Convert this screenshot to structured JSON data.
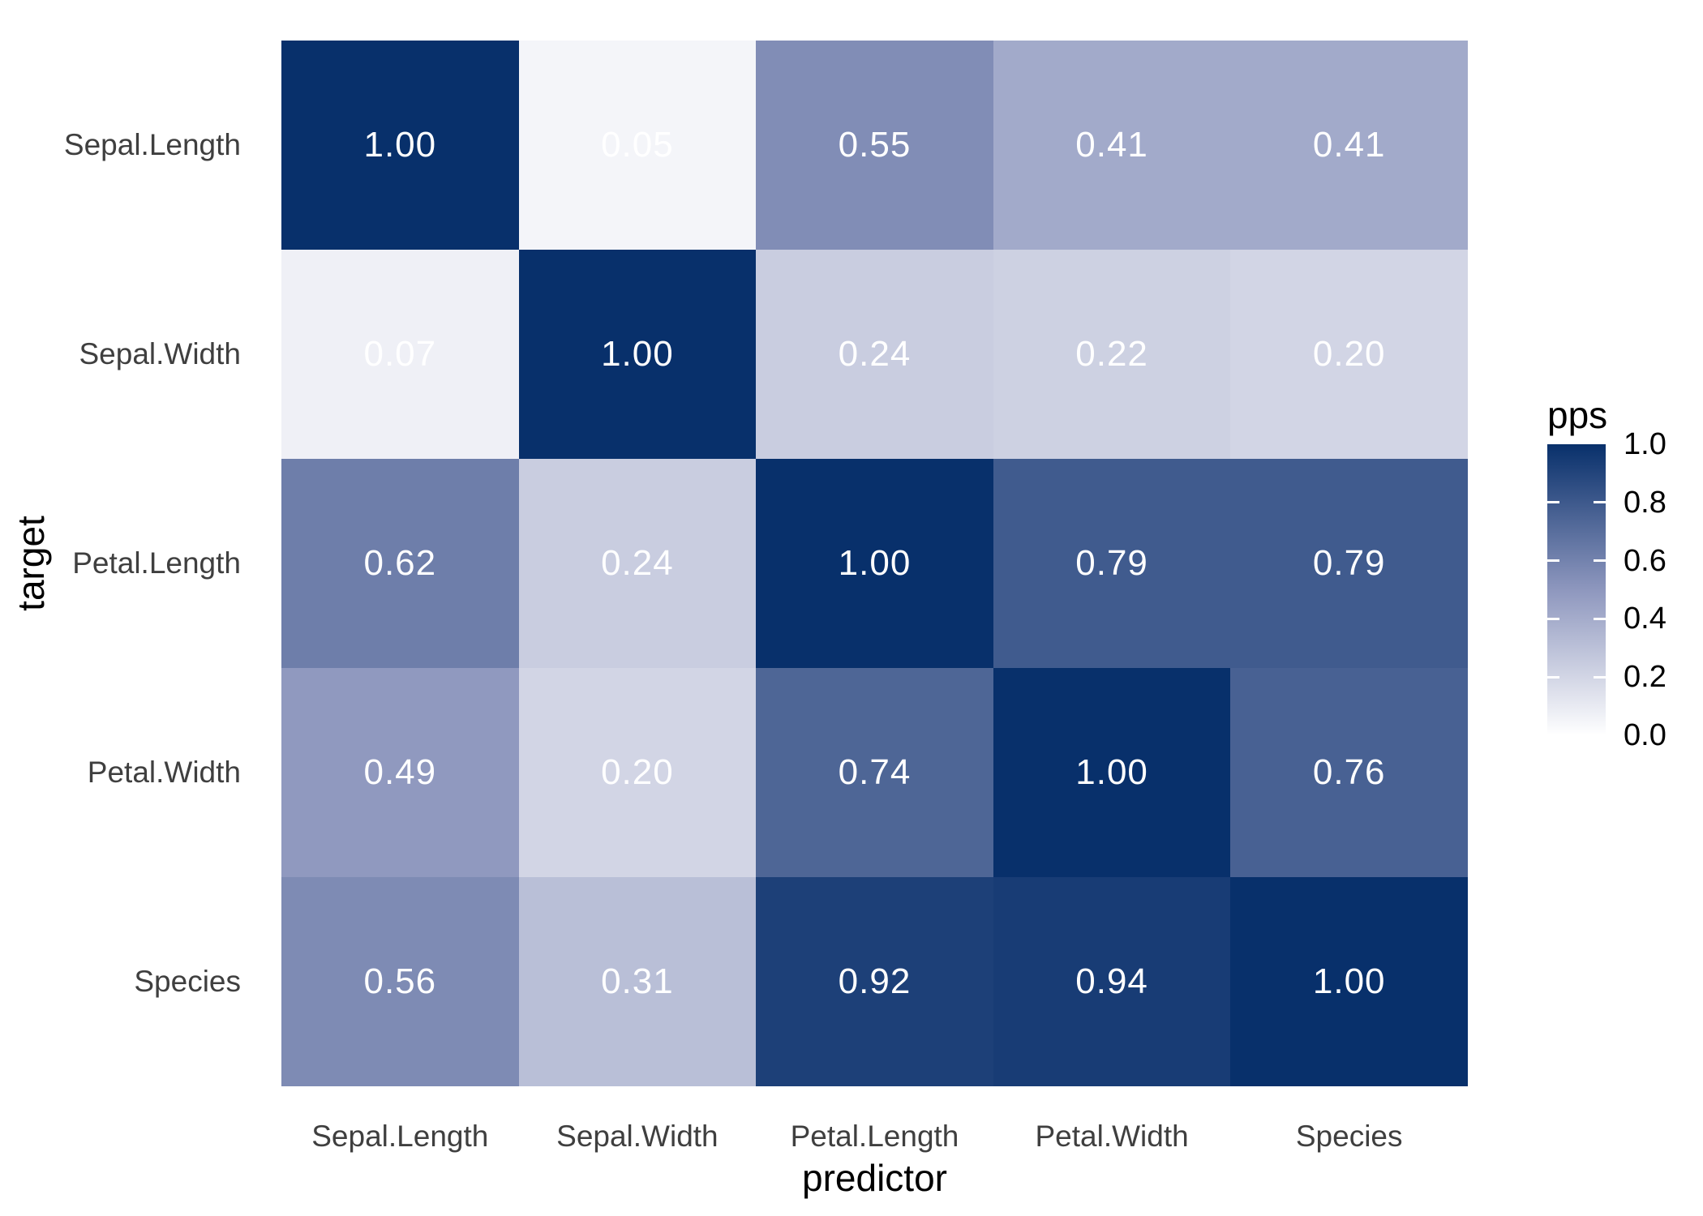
{
  "figure": {
    "x_axis_title": "predictor",
    "y_axis_title": "target",
    "legend_title": "pps"
  },
  "chart_data": {
    "type": "heatmap",
    "title": "",
    "xlabel": "predictor",
    "ylabel": "target",
    "x_categories": [
      "Sepal.Length",
      "Sepal.Width",
      "Petal.Length",
      "Petal.Width",
      "Species"
    ],
    "y_categories": [
      "Sepal.Length",
      "Sepal.Width",
      "Petal.Length",
      "Petal.Width",
      "Species"
    ],
    "values": [
      [
        1.0,
        0.05,
        0.55,
        0.41,
        0.41
      ],
      [
        0.07,
        1.0,
        0.24,
        0.22,
        0.2
      ],
      [
        0.62,
        0.24,
        1.0,
        0.79,
        0.79
      ],
      [
        0.49,
        0.2,
        0.74,
        1.0,
        0.76
      ],
      [
        0.56,
        0.31,
        0.92,
        0.94,
        1.0
      ]
    ],
    "value_format_decimals": 2,
    "cell_text_color": "#FFFFFF",
    "axis_label_color": "#3F3F3F",
    "legend": {
      "title": "pps",
      "tick_labels": [
        "1.0",
        "0.8",
        "0.6",
        "0.4",
        "0.2",
        "0.0"
      ],
      "range": [
        0.0,
        1.0
      ],
      "position": "right",
      "tick_mark_color": "#FFFFFF"
    },
    "colorscale": {
      "low": "#FFFFFF",
      "mid": "#8E97BE",
      "high": "#08306B"
    },
    "grid": false
  }
}
